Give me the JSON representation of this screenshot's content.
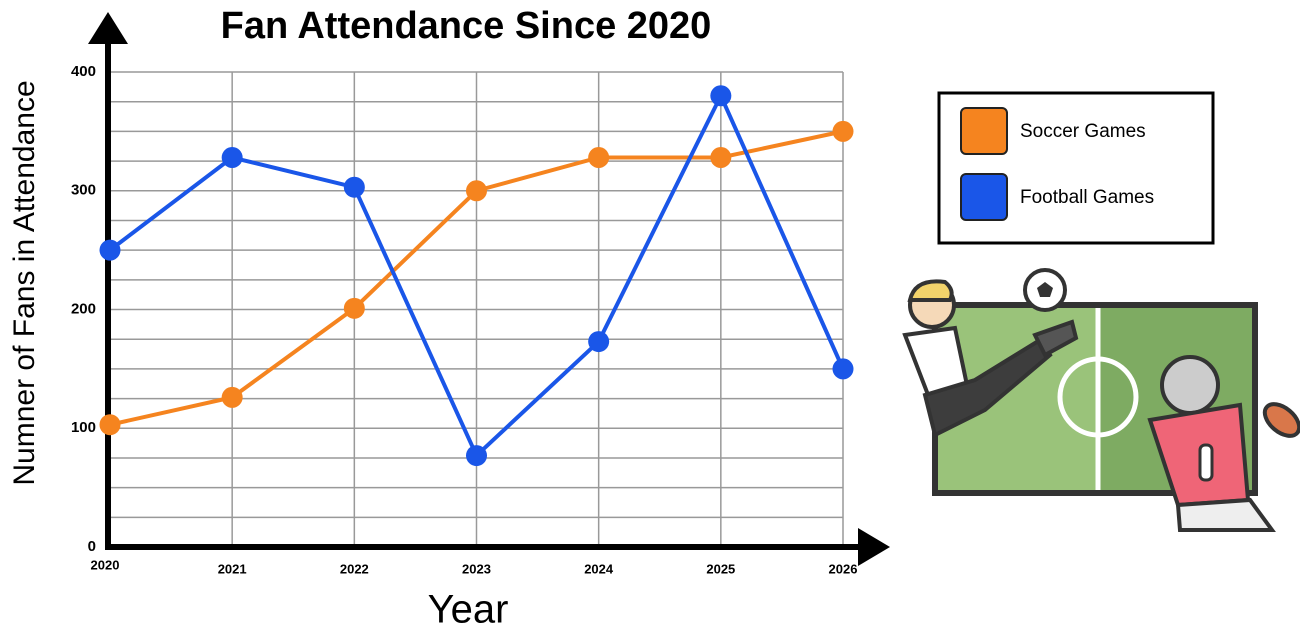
{
  "chart_data": {
    "type": "line",
    "title": "Fan Attendance Since 2020",
    "x_label": "Year",
    "y_label": "Numner of Fans in Attendance",
    "categories": [
      "2020",
      "2021",
      "2022",
      "2023",
      "2024",
      "2025",
      "2026"
    ],
    "series": [
      {
        "name": "Soccer Games",
        "color": "#f5841f",
        "values": [
          103,
          126,
          201,
          300,
          328,
          328,
          350
        ]
      },
      {
        "name": "Football Games",
        "color": "#1a56e8",
        "values": [
          250,
          328,
          303,
          77,
          173,
          380,
          150
        ]
      }
    ],
    "ylim": [
      0,
      400
    ],
    "yticks": [
      0,
      100,
      200,
      300,
      400
    ],
    "grid": true
  }
}
